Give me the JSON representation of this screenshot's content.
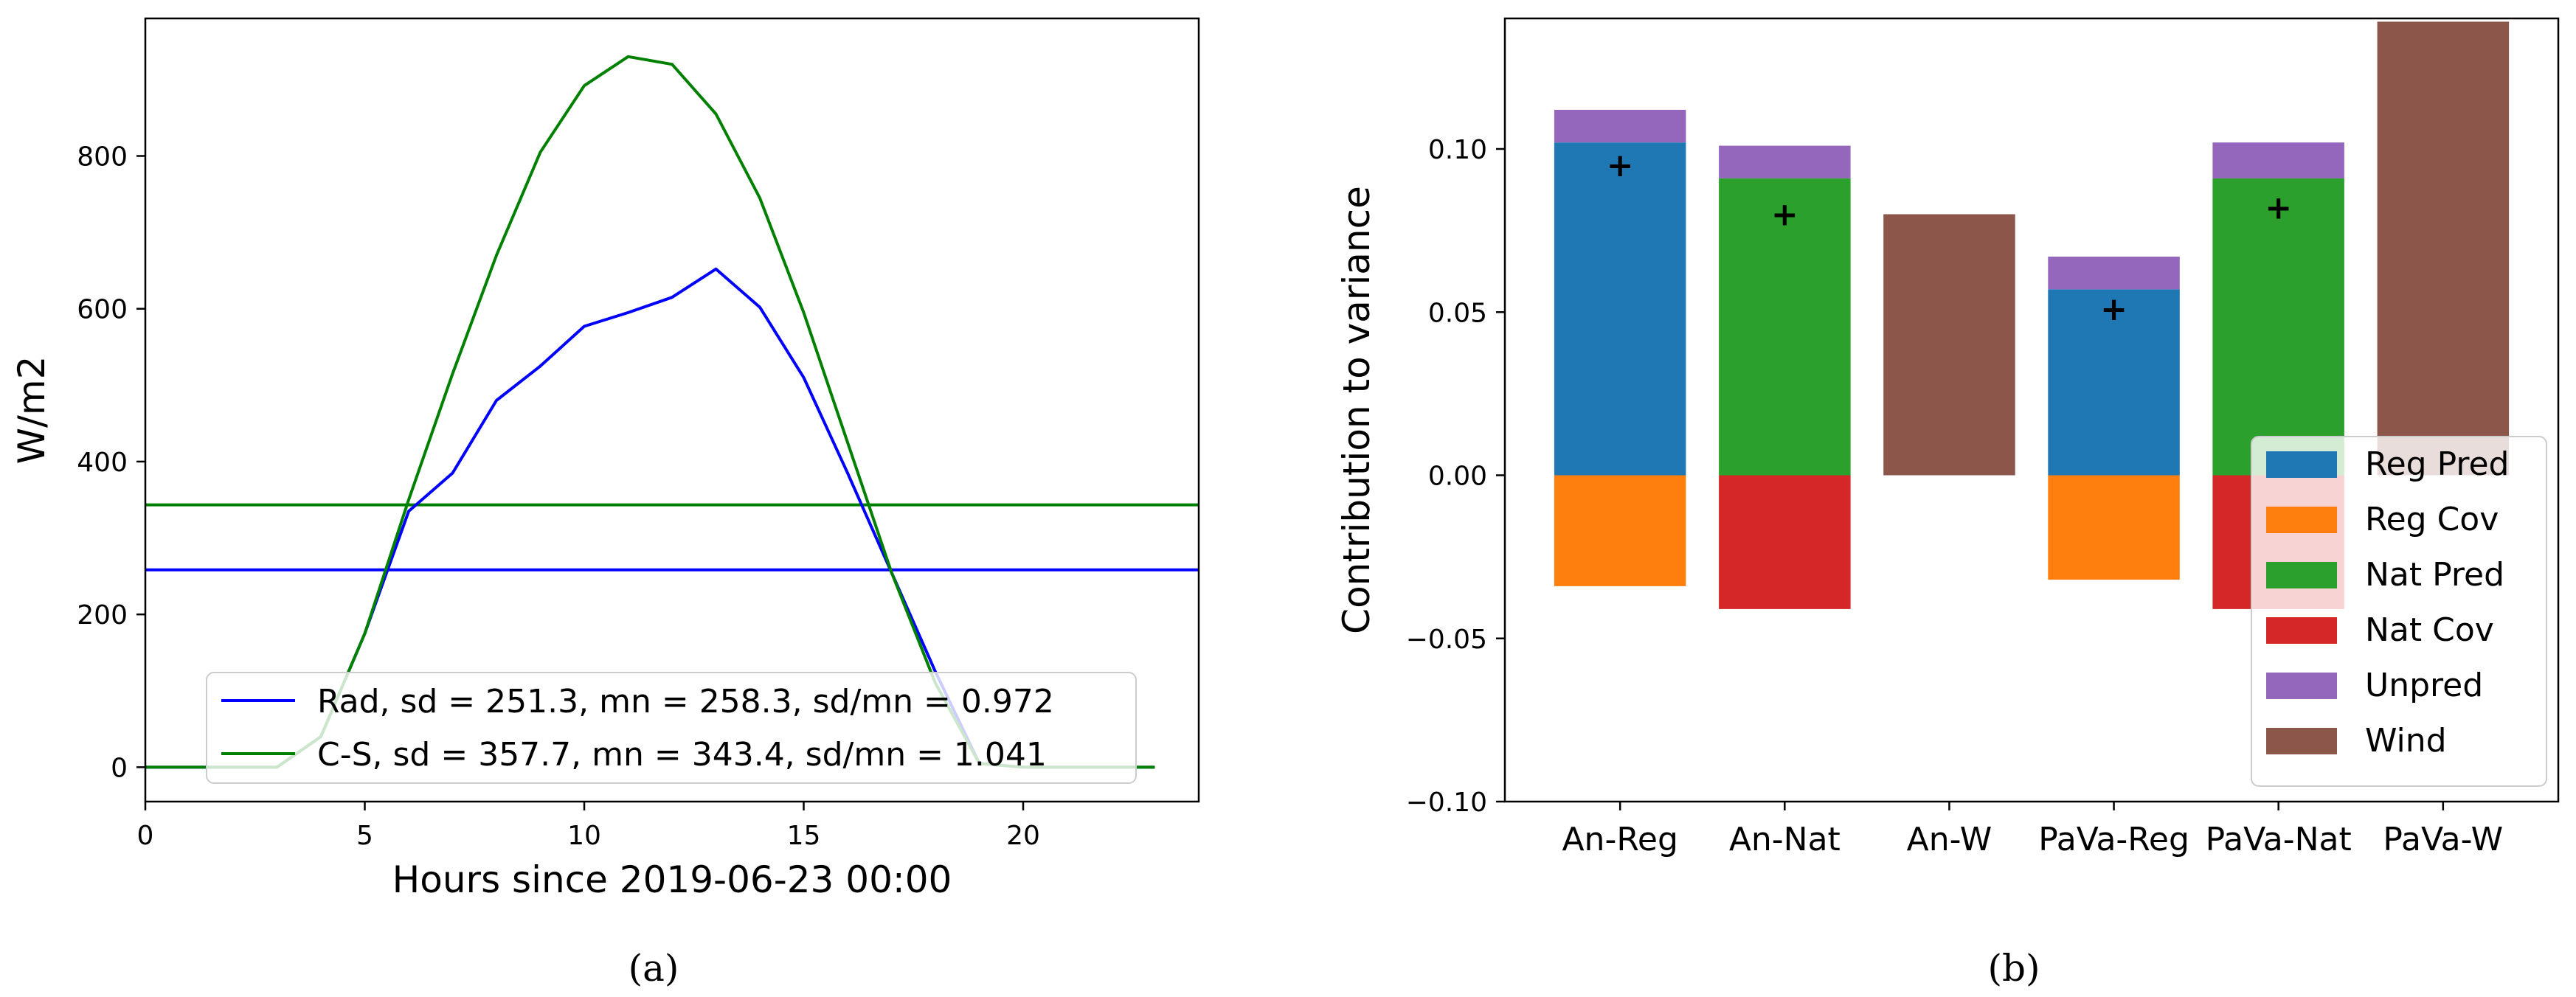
{
  "chart_data": [
    {
      "type": "line",
      "caption": "(a)",
      "title": "",
      "xlabel": "Hours since 2019-06-23 00:00",
      "ylabel": "W/m2",
      "xlim": [
        0,
        24
      ],
      "ylim": [
        -45,
        980
      ],
      "xticks": [
        0,
        5,
        10,
        15,
        20
      ],
      "yticks": [
        0,
        200,
        400,
        600,
        800
      ],
      "grid": false,
      "legend_position": "lower-center",
      "x": [
        0,
        1,
        2,
        3,
        4,
        5,
        6,
        7,
        8,
        9,
        10,
        11,
        12,
        13,
        14,
        15,
        16,
        17,
        18,
        19,
        20,
        21,
        22,
        23
      ],
      "series": [
        {
          "name": "Rad, sd = 251.3, mn = 258.3, sd/mn = 0.972",
          "color": "#0000ff",
          "values": [
            0,
            0,
            0,
            0,
            40,
            175,
            335,
            385,
            480,
            525,
            577,
            595,
            615,
            652,
            602,
            510,
            385,
            255,
            125,
            5,
            0,
            0,
            0,
            0
          ],
          "mean": 258.3
        },
        {
          "name": "C-S, sd = 357.7, mn = 343.4, sd/mn = 1.041",
          "color": "#008000",
          "values": [
            0,
            0,
            0,
            0,
            40,
            175,
            350,
            515,
            670,
            805,
            892,
            930,
            920,
            855,
            745,
            595,
            425,
            255,
            110,
            5,
            0,
            0,
            0,
            0
          ],
          "mean": 343.4
        }
      ]
    },
    {
      "type": "bar",
      "stacked": true,
      "caption": "(b)",
      "title": "",
      "xlabel": "",
      "ylabel": "Contribution to variance",
      "ylim": [
        -0.1,
        0.14
      ],
      "yticks": [
        -0.1,
        -0.05,
        0.0,
        0.05,
        0.1
      ],
      "ytick_labels": [
        "−0.10",
        "−0.05",
        "0.00",
        "0.05",
        "0.10"
      ],
      "grid": false,
      "legend_position": "lower-right",
      "categories": [
        "An-Reg",
        "An-Nat",
        "An-W",
        "PaVa-Reg",
        "PaVa-Nat",
        "PaVa-W"
      ],
      "series": [
        {
          "name": "Reg Pred",
          "color": "#1f77b4",
          "values": [
            0.102,
            0,
            0,
            0.057,
            0,
            0
          ]
        },
        {
          "name": "Reg Cov",
          "color": "#ff7f0e",
          "values": [
            -0.034,
            0,
            0,
            -0.032,
            0,
            0
          ]
        },
        {
          "name": "Nat Pred",
          "color": "#2ca02c",
          "values": [
            0,
            0.091,
            0,
            0,
            0.091,
            0
          ]
        },
        {
          "name": "Nat Cov",
          "color": "#d62728",
          "values": [
            0,
            -0.041,
            0,
            0,
            -0.041,
            0
          ]
        },
        {
          "name": "Unpred",
          "color": "#9467bd",
          "values": [
            0.01,
            0.01,
            0,
            0.01,
            0.011,
            0
          ]
        },
        {
          "name": "Wind",
          "color": "#8c564b",
          "values": [
            0,
            0,
            0.08,
            0,
            0,
            0.139
          ]
        }
      ],
      "markers": {
        "symbol": "+",
        "values": [
          0.095,
          0.08,
          null,
          0.051,
          0.082,
          null
        ]
      }
    }
  ]
}
